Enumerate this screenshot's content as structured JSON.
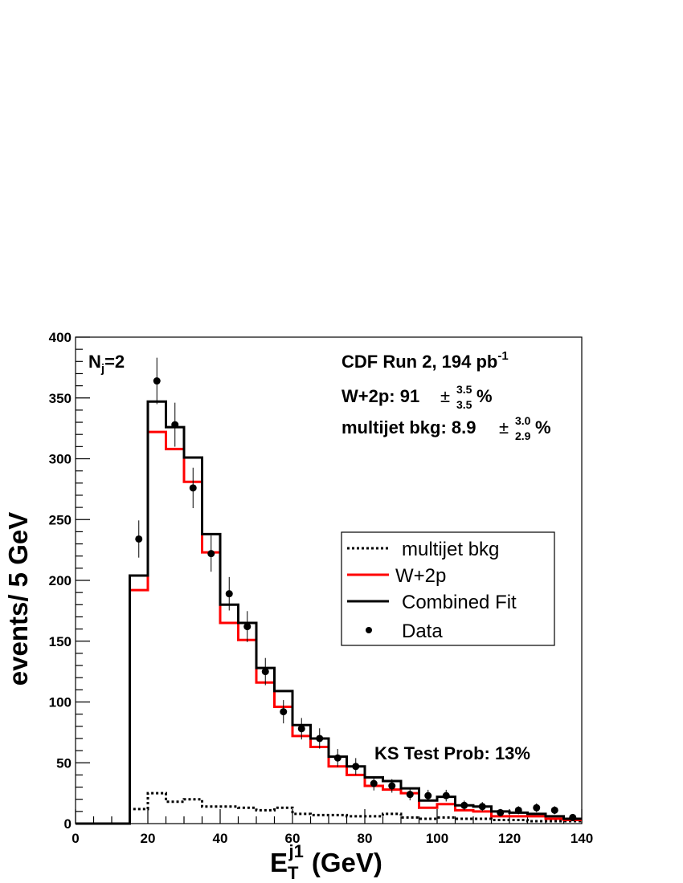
{
  "chart_data": {
    "type": "histogram",
    "xlabel": {
      "main": "E",
      "sub": "T",
      "sup": "j1",
      "unit": "(GeV)"
    },
    "ylabel": "events/ 5 GeV",
    "xlim": [
      0,
      140
    ],
    "ylim": [
      0,
      400
    ],
    "x_ticks": [
      0,
      20,
      40,
      60,
      80,
      100,
      120,
      140
    ],
    "y_ticks": [
      0,
      50,
      100,
      150,
      200,
      250,
      300,
      350,
      400
    ],
    "bin_edges": [
      0,
      15,
      20,
      25,
      30,
      35,
      40,
      45,
      50,
      55,
      60,
      65,
      70,
      75,
      80,
      85,
      90,
      95,
      100,
      105,
      110,
      115,
      120,
      125,
      130,
      135,
      140
    ],
    "series": [
      {
        "name": "multijet bkg",
        "style": "dotted",
        "color": "#000000",
        "values": [
          0,
          12,
          25,
          18,
          20,
          14,
          14,
          13,
          11,
          13,
          8,
          7,
          7,
          6,
          6,
          8,
          5,
          4,
          5,
          4,
          4,
          3,
          3,
          2,
          2,
          2
        ]
      },
      {
        "name": "W+2p",
        "style": "solid",
        "color": "#ff0000",
        "values": [
          0,
          192,
          322,
          308,
          281,
          223,
          165,
          151,
          116,
          96,
          72,
          63,
          47,
          40,
          31,
          28,
          25,
          13,
          16,
          11,
          10,
          6,
          6,
          6,
          4,
          3
        ]
      },
      {
        "name": "Combined Fit",
        "style": "solid",
        "color": "#000000",
        "values": [
          0,
          204,
          347,
          326,
          301,
          238,
          180,
          165,
          128,
          109,
          81,
          70,
          55,
          47,
          38,
          35,
          29,
          19,
          22,
          15,
          14,
          10,
          9,
          8,
          6,
          4
        ]
      }
    ],
    "data_points": {
      "name": "Data",
      "x": [
        17.5,
        22.5,
        27.5,
        32.5,
        37.5,
        42.5,
        47.5,
        52.5,
        57.5,
        62.5,
        67.5,
        72.5,
        77.5,
        82.5,
        87.5,
        92.5,
        97.5,
        102.5,
        107.5,
        112.5,
        117.5,
        122.5,
        127.5,
        132.5,
        137.5
      ],
      "y": [
        234,
        364,
        328,
        276,
        222,
        189,
        162,
        125,
        92,
        78,
        70,
        54,
        47,
        33,
        31,
        24,
        23,
        23,
        15,
        14,
        9,
        11,
        13,
        11,
        5
      ]
    },
    "legend": {
      "placement": "right-middle",
      "entries": [
        "multijet bkg",
        "W+2p",
        "Combined Fit",
        "Data"
      ]
    },
    "annotations": {
      "nj": {
        "main": "N",
        "sub": "j",
        "rest": "=2"
      },
      "run": {
        "text": "CDF Run 2, 194 pb",
        "sup": "-1"
      },
      "w2p": {
        "label": "W+2p: 91",
        "pm": "±",
        "up": "3.5",
        "down": "3.5",
        "unit": "%"
      },
      "multijet": {
        "label": "multijet bkg: 8.9",
        "pm": "±",
        "up": "3.0",
        "down": "2.9",
        "unit": "%"
      },
      "ks": "KS Test Prob: 13%"
    }
  }
}
